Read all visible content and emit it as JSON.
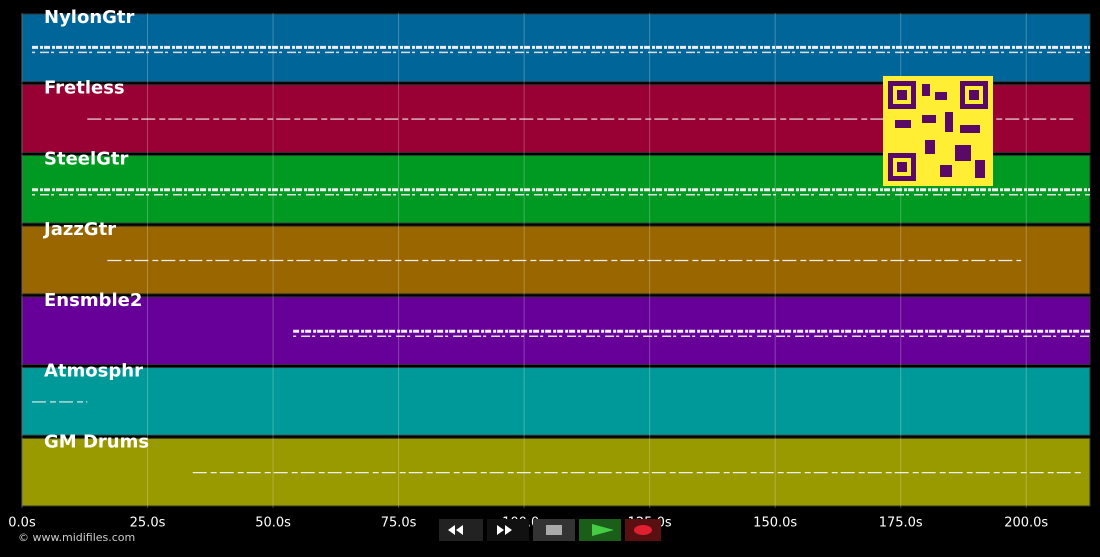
{
  "chart_data": {
    "type": "timeline",
    "footer": "© www.midifiles.com",
    "xlim": [
      0,
      212.7
    ],
    "xticks": [
      {
        "value": 0,
        "label": "0.0s"
      },
      {
        "value": 25,
        "label": "25.0s"
      },
      {
        "value": 50,
        "label": "50.0s"
      },
      {
        "value": 75,
        "label": "75.0s"
      },
      {
        "value": 100,
        "label": "100.0s"
      },
      {
        "value": 125,
        "label": "125.0s"
      },
      {
        "value": 150,
        "label": "150.0s"
      },
      {
        "value": 175,
        "label": "175.0s"
      },
      {
        "value": 200,
        "label": "200.0s"
      }
    ],
    "grid": true,
    "tracks": [
      {
        "name": "NylonGtr",
        "color": "#006699",
        "start": 2,
        "end": 212.7,
        "dense": true
      },
      {
        "name": "Fretless",
        "color": "#990033",
        "start": 13,
        "end": 210,
        "dense": false
      },
      {
        "name": "SteelGtr",
        "color": "#009922",
        "start": 2,
        "end": 212.7,
        "dense": true
      },
      {
        "name": "JazzGtr",
        "color": "#996600",
        "start": 17,
        "end": 199,
        "dense": false
      },
      {
        "name": "Ensmble2",
        "color": "#660099",
        "start": 54,
        "end": 212.7,
        "dense": true
      },
      {
        "name": "Atmosphr",
        "color": "#009999",
        "start": 2,
        "end": 13,
        "dense": false
      },
      {
        "name": "GM Drums",
        "color": "#999900",
        "start": 34,
        "end": 211,
        "dense": false
      }
    ]
  }
}
